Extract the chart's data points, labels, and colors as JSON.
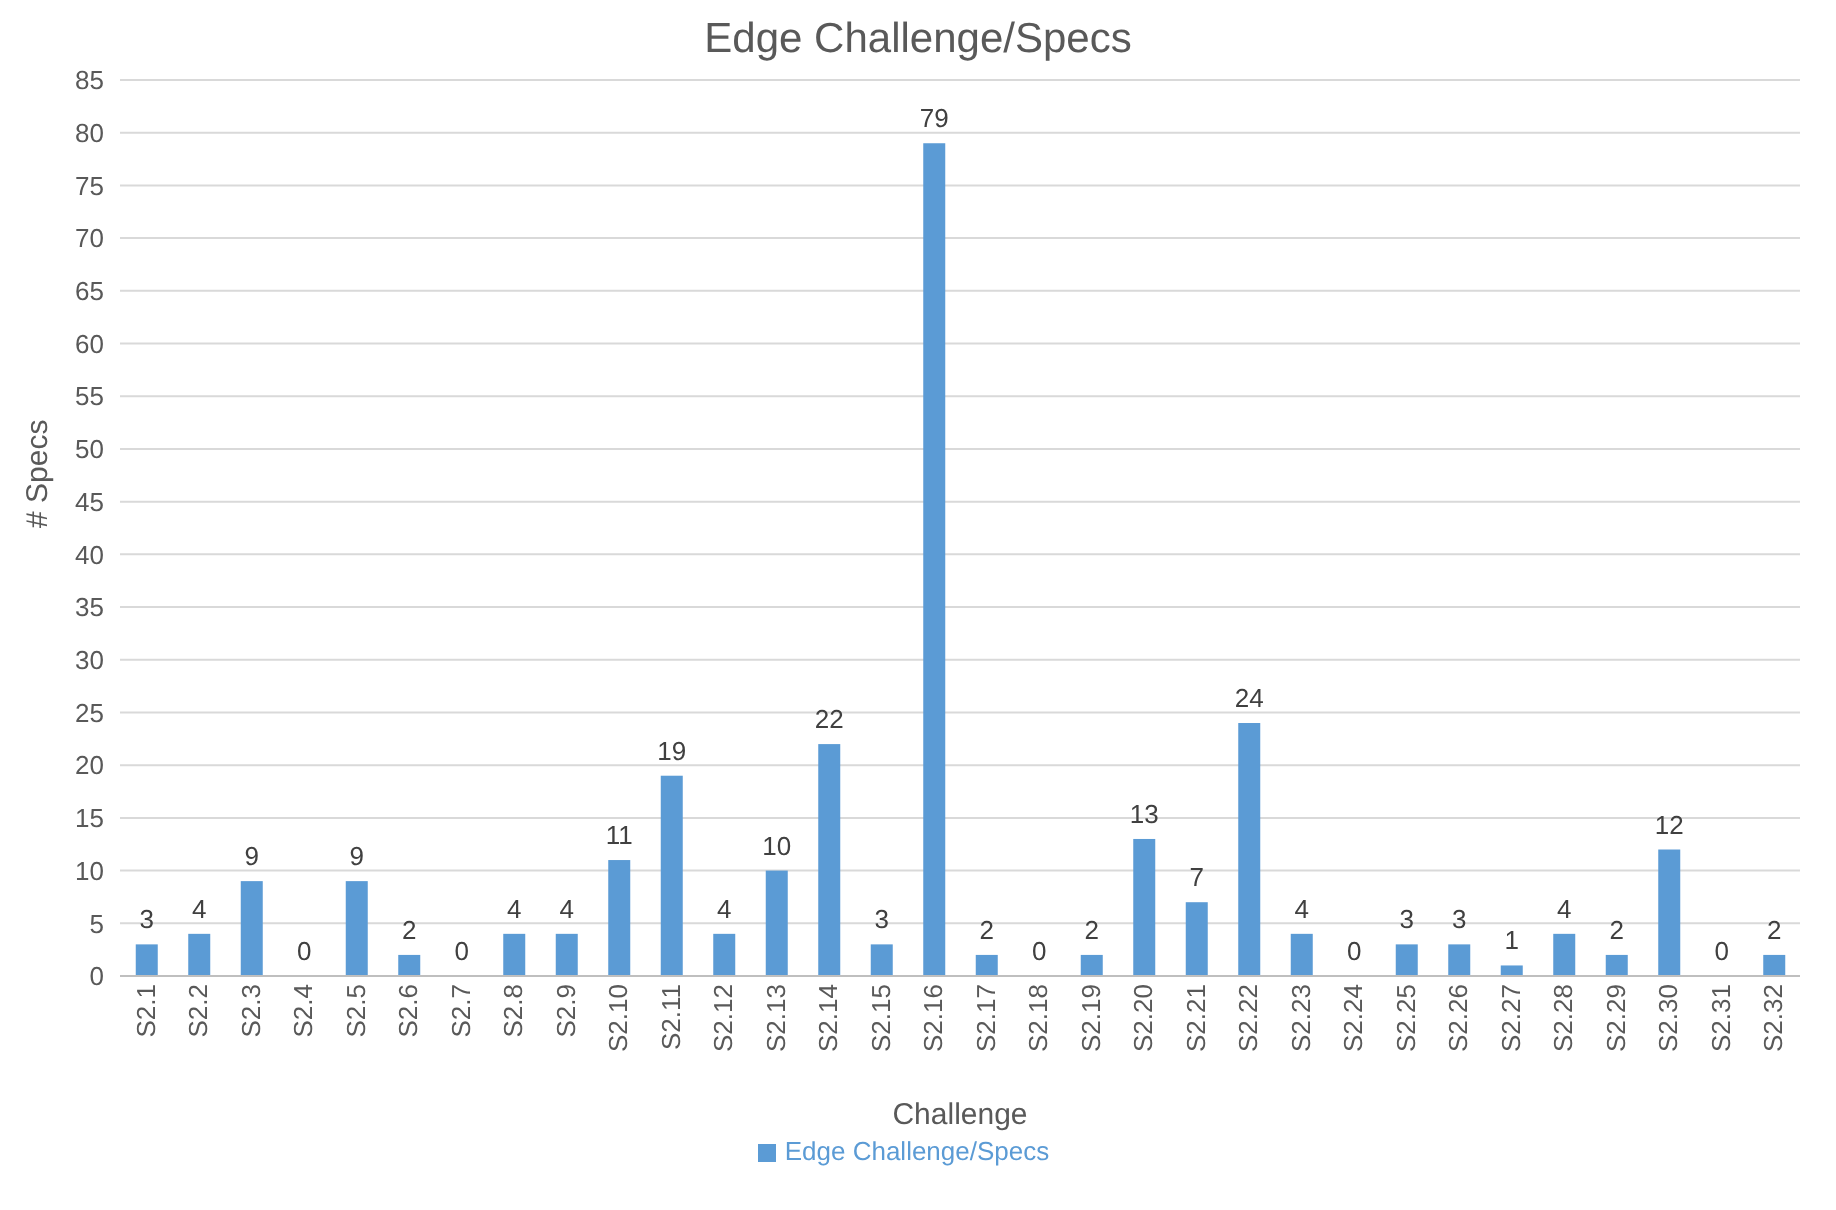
{
  "chart_data": {
    "type": "bar",
    "title": "Edge Challenge/Specs",
    "xlabel": "Challenge",
    "ylabel": "# Specs",
    "categories": [
      "S2.1",
      "S2.2",
      "S2.3",
      "S2.4",
      "S2.5",
      "S2.6",
      "S2.7",
      "S2.8",
      "S2.9",
      "S2.10",
      "S2.11",
      "S2.12",
      "S2.13",
      "S2.14",
      "S2.15",
      "S2.16",
      "S2.17",
      "S2.18",
      "S2.19",
      "S2.20",
      "S2.21",
      "S2.22",
      "S2.23",
      "S2.24",
      "S2.25",
      "S2.26",
      "S2.27",
      "S2.28",
      "S2.29",
      "S2.30",
      "S2.31",
      "S2.32"
    ],
    "series": [
      {
        "name": "Edge Challenge/Specs",
        "color": "#5b9bd5",
        "values": [
          3,
          4,
          9,
          0,
          9,
          2,
          0,
          4,
          4,
          11,
          19,
          4,
          10,
          22,
          3,
          79,
          2,
          0,
          2,
          13,
          7,
          24,
          4,
          0,
          3,
          3,
          1,
          4,
          2,
          12,
          0,
          2
        ]
      }
    ],
    "ylim": [
      0,
      85
    ],
    "yticks": [
      0,
      5,
      10,
      15,
      20,
      25,
      30,
      35,
      40,
      45,
      50,
      55,
      60,
      65,
      70,
      75,
      80,
      85
    ],
    "grid": "y",
    "legend": "bottom",
    "data_labels": true
  }
}
